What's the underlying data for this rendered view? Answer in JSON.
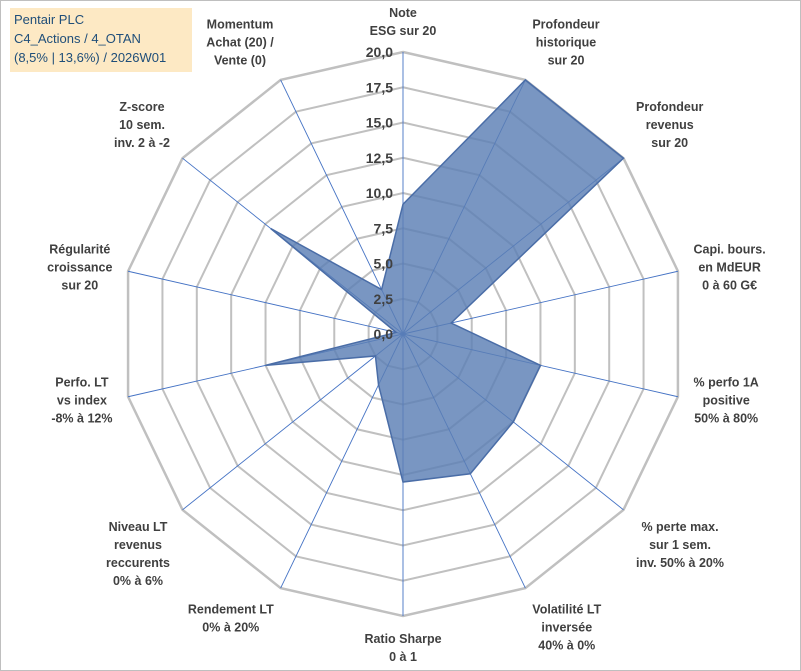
{
  "title": {
    "line1": "Pentair PLC",
    "line2": "C4_Actions / 4_OTAN",
    "line3": "(8,5% | 13,6%) / 2026W01"
  },
  "colors": {
    "grid": "#c0c0c0",
    "spoke": "#4472c4",
    "fill": "#5b7fb5",
    "stroke": "#4a6da7",
    "title_bg": "#fde9c4",
    "title_text": "#1f4e79",
    "label_text": "#404040"
  },
  "chart_data": {
    "type": "radar",
    "rmin": 0,
    "rmax": 20,
    "tick_step": 2.5,
    "ticks": [
      "0,0",
      "2,5",
      "5,0",
      "7,5",
      "10,0",
      "12,5",
      "15,0",
      "17,5",
      "20,0"
    ],
    "axes": [
      [
        "Note",
        "ESG sur 20"
      ],
      [
        "Profondeur",
        "historique",
        "sur 20"
      ],
      [
        "Profondeur",
        "revenus",
        "sur 20"
      ],
      [
        "Capi. bours.",
        "en MdEUR",
        "0 à 60 G€"
      ],
      [
        "% perfo 1A",
        "positive",
        "50% à 80%"
      ],
      [
        "% perte max.",
        "sur 1 sem.",
        "inv. 50% à 20%"
      ],
      [
        "Volatilité LT",
        "inversée",
        "40% à 0%"
      ],
      [
        "Ratio Sharpe",
        "0 à 1"
      ],
      [
        "Rendement LT",
        "0% à 20%"
      ],
      [
        "Niveau LT",
        "revenus",
        "reccurents",
        "0% à 6%"
      ],
      [
        "Perfo. LT",
        "vs index",
        "-8% à 12%"
      ],
      [
        "Régularité",
        "croissance",
        "sur 20"
      ],
      [
        "Z-score",
        "10 sem.",
        "inv. 2 à -2"
      ],
      [
        "Momentum",
        "Achat (20) /",
        "Vente (0)"
      ]
    ],
    "series": [
      {
        "name": "Pentair PLC",
        "values": [
          9.2,
          20.0,
          20.0,
          3.5,
          10.0,
          10.0,
          11.0,
          10.5,
          4.0,
          2.5,
          10.0,
          0.5,
          12.0,
          3.5
        ]
      }
    ]
  }
}
